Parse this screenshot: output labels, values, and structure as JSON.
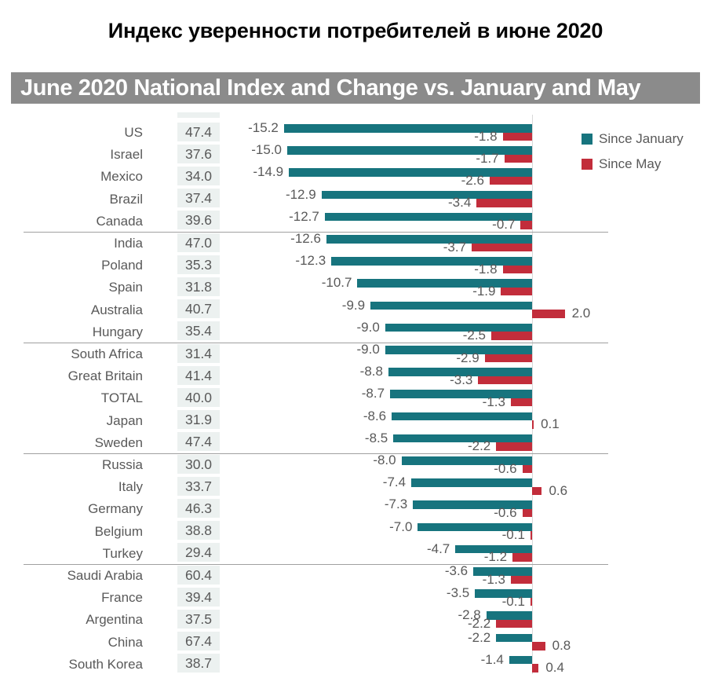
{
  "page": {
    "title_ru": "Индекс уверенности потребителей в июне 2020",
    "banner": "June 2020 National Index and Change vs. January and May"
  },
  "colors": {
    "since_january": "#17747E",
    "since_may": "#C22D3B",
    "banner_bg": "#8B8B8B",
    "value_cell_bg": "#ECF1F0",
    "text_gray": "#595959"
  },
  "chart_data": {
    "type": "bar",
    "orientation": "horizontal-grouped",
    "title": "June 2020 National Index and Change vs. January and May",
    "legend_position": "top-right",
    "xlim": [
      -16,
      2.5
    ],
    "grid": false,
    "series": [
      {
        "name": "Since January",
        "color": "#17747E"
      },
      {
        "name": "Since May",
        "color": "#C22D3B"
      }
    ],
    "rows": [
      {
        "country": "US",
        "index": 47.4,
        "since_january": -15.2,
        "since_may": -1.8
      },
      {
        "country": "Israel",
        "index": 37.6,
        "since_january": -15.0,
        "since_may": -1.7
      },
      {
        "country": "Mexico",
        "index": 34.0,
        "since_january": -14.9,
        "since_may": -2.6
      },
      {
        "country": "Brazil",
        "index": 37.4,
        "since_january": -12.9,
        "since_may": -3.4
      },
      {
        "country": "Canada",
        "index": 39.6,
        "since_january": -12.7,
        "since_may": -0.7
      },
      {
        "country": "India",
        "index": 47.0,
        "since_january": -12.6,
        "since_may": -3.7
      },
      {
        "country": "Poland",
        "index": 35.3,
        "since_january": -12.3,
        "since_may": -1.8
      },
      {
        "country": "Spain",
        "index": 31.8,
        "since_january": -10.7,
        "since_may": -1.9
      },
      {
        "country": "Australia",
        "index": 40.7,
        "since_january": -9.9,
        "since_may": 2.0
      },
      {
        "country": "Hungary",
        "index": 35.4,
        "since_january": -9.0,
        "since_may": -2.5
      },
      {
        "country": "South Africa",
        "index": 31.4,
        "since_january": -9.0,
        "since_may": -2.9
      },
      {
        "country": "Great Britain",
        "index": 41.4,
        "since_january": -8.8,
        "since_may": -3.3
      },
      {
        "country": "TOTAL",
        "index": 40.0,
        "since_january": -8.7,
        "since_may": -1.3
      },
      {
        "country": "Japan",
        "index": 31.9,
        "since_january": -8.6,
        "since_may": 0.1
      },
      {
        "country": "Sweden",
        "index": 47.4,
        "since_january": -8.5,
        "since_may": -2.2
      },
      {
        "country": "Russia",
        "index": 30.0,
        "since_january": -8.0,
        "since_may": -0.6
      },
      {
        "country": "Italy",
        "index": 33.7,
        "since_january": -7.4,
        "since_may": 0.6
      },
      {
        "country": "Germany",
        "index": 46.3,
        "since_january": -7.3,
        "since_may": -0.6
      },
      {
        "country": "Belgium",
        "index": 38.8,
        "since_january": -7.0,
        "since_may": -0.1
      },
      {
        "country": "Turkey",
        "index": 29.4,
        "since_january": -4.7,
        "since_may": -1.2
      },
      {
        "country": "Saudi Arabia",
        "index": 60.4,
        "since_january": -3.6,
        "since_may": -1.3
      },
      {
        "country": "France",
        "index": 39.4,
        "since_january": -3.5,
        "since_may": -0.1
      },
      {
        "country": "Argentina",
        "index": 37.5,
        "since_january": -2.8,
        "since_may": -2.2
      },
      {
        "country": "China",
        "index": 67.4,
        "since_january": -2.2,
        "since_may": 0.8
      },
      {
        "country": "South Korea",
        "index": 38.7,
        "since_january": -1.4,
        "since_may": 0.4
      }
    ],
    "separators_after_rows": [
      4,
      9,
      14,
      19
    ]
  }
}
